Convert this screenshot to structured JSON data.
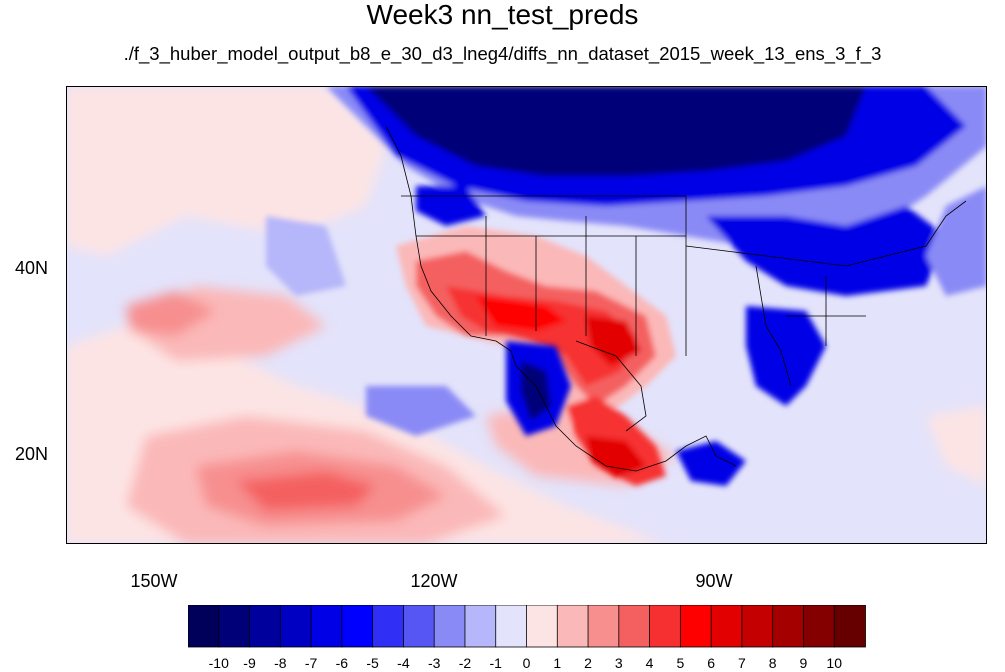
{
  "title": "Week3 nn_test_preds",
  "subtitle": "./f_3_huber_model_output_b8_e_30_d3_lneg4/diffs_nn_dataset_2015_week_13_ens_3_f_3",
  "map": {
    "projection": "cylindrical-equidistant",
    "lon_range": [
      -161,
      -62
    ],
    "lat_range": [
      10,
      59
    ],
    "x_ticks": [
      "150W",
      "120W",
      "90W"
    ],
    "y_ticks": [
      "40N",
      "20N"
    ],
    "features": [
      "coastlines",
      "US state borders",
      "country borders"
    ]
  },
  "chart_data": {
    "type": "heatmap",
    "title": "Week3 nn_test_preds",
    "colorbar": {
      "labels": [
        "-10",
        "-9",
        "-8",
        "-7",
        "-6",
        "-5",
        "-4",
        "-3",
        "-2",
        "-1",
        "0",
        "1",
        "2",
        "3",
        "4",
        "5",
        "6",
        "7",
        "8",
        "9",
        "10"
      ],
      "colors": [
        "#00005a",
        "#000078",
        "#00009c",
        "#0000c3",
        "#0000e6",
        "#0000ff",
        "#2f2ff6",
        "#5656f4",
        "#8a8af6",
        "#b6b6fa",
        "#e3e3fb",
        "#fde4e4",
        "#fbb8b8",
        "#f78f8f",
        "#f46060",
        "#f63030",
        "#ff0000",
        "#e20000",
        "#c40000",
        "#a40000",
        "#840000",
        "#660000"
      ]
    },
    "anomaly_regions": [
      {
        "name": "central Canada",
        "value": -10
      },
      {
        "name": "Pacific Northwest / British Columbia coast",
        "value": -8
      },
      {
        "name": "Great Lakes and Northeast US",
        "value": -6
      },
      {
        "name": "Southeast US",
        "value": -6
      },
      {
        "name": "northern Mexico (Sierra Madre)",
        "value": -7
      },
      {
        "name": "Central America / Guatemala",
        "value": -7
      },
      {
        "name": "US Southwest",
        "value": 6
      },
      {
        "name": "Texas / southern Great Plains",
        "value": 6
      },
      {
        "name": "southern Mexico",
        "value": 7
      },
      {
        "name": "subtropical Pacific (southwest of Baja)",
        "value": 3
      },
      {
        "name": "eastern Pacific near 35N",
        "value": 2
      },
      {
        "name": "western Atlantic",
        "value": -2
      }
    ]
  }
}
